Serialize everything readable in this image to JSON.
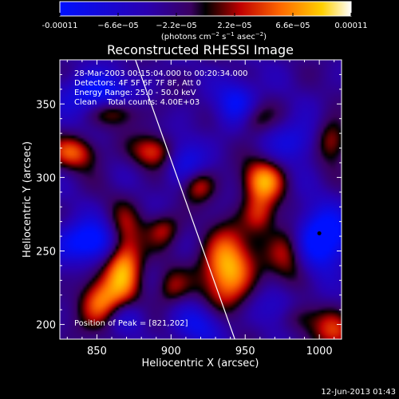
{
  "chart_data": {
    "type": "heatmap",
    "title": "Reconstructed RHESSI Image",
    "xlabel": "Heliocentric X (arcsec)",
    "ylabel": "Heliocentric Y (arcsec)",
    "xlim": [
      825,
      1015
    ],
    "ylim": [
      190,
      380
    ],
    "x_ticks": [
      850,
      900,
      950,
      1000
    ],
    "y_ticks": [
      200,
      250,
      300,
      350
    ],
    "colorbar": {
      "min": -0.00011,
      "max": 0.00011,
      "tick_values": [
        -0.00011,
        -6.6e-05,
        -2.2e-05,
        2.2e-05,
        6.6e-05,
        0.00011
      ],
      "tick_labels": [
        "-0.00011",
        "−6.6e−05",
        "−2.2e−05",
        "2.2e−05",
        "6.6e−05",
        "0.00011"
      ],
      "unit_label_parts": [
        "(photons cm",
        "−2",
        " s",
        "−1",
        " asec",
        "−2",
        ")"
      ]
    },
    "annotations": [
      "28-Mar-2003 00:15:04.000 to 00:20:34.000",
      "Detectors: 4F 5F 6F 7F 8F, Att 0",
      "Energy Range: 25.0 - 50.0 keV",
      "Clean    Total counts: 4.00E+03"
    ],
    "peak_label": "Position of Peak = [821,202]",
    "peak_marker": {
      "x": 1000,
      "y": 262
    },
    "limb_line": {
      "points": [
        [
          876,
          380
        ],
        [
          943,
          190
        ]
      ]
    },
    "sources": [
      {
        "x": 1000,
        "y": 258,
        "sx": 14,
        "sy": 14,
        "amp": -1.3
      },
      {
        "x": 846,
        "y": 256,
        "sx": 16,
        "sy": 10,
        "amp": -1.1
      },
      {
        "x": 850,
        "y": 357,
        "sx": 16,
        "sy": 10,
        "amp": -0.9
      },
      {
        "x": 945,
        "y": 350,
        "sx": 10,
        "sy": 12,
        "amp": -0.8
      },
      {
        "x": 985,
        "y": 325,
        "sx": 12,
        "sy": 10,
        "amp": -0.6
      },
      {
        "x": 910,
        "y": 310,
        "sx": 10,
        "sy": 12,
        "amp": -0.6
      },
      {
        "x": 920,
        "y": 200,
        "sx": 12,
        "sy": 10,
        "amp": -0.6
      },
      {
        "x": 975,
        "y": 210,
        "sx": 12,
        "sy": 10,
        "amp": -0.5
      },
      {
        "x": 870,
        "y": 205,
        "sx": 10,
        "sy": 8,
        "amp": -0.5
      },
      {
        "x": 868,
        "y": 245,
        "sx": 9,
        "sy": 20,
        "amp": 1.3
      },
      {
        "x": 852,
        "y": 215,
        "sx": 10,
        "sy": 12,
        "amp": 1.0
      },
      {
        "x": 938,
        "y": 238,
        "sx": 12,
        "sy": 18,
        "amp": 1.3
      },
      {
        "x": 962,
        "y": 298,
        "sx": 10,
        "sy": 10,
        "amp": 1.05
      },
      {
        "x": 980,
        "y": 250,
        "sx": 10,
        "sy": 14,
        "amp": 0.9
      },
      {
        "x": 960,
        "y": 275,
        "sx": 8,
        "sy": 10,
        "amp": 0.7
      },
      {
        "x": 888,
        "y": 318,
        "sx": 10,
        "sy": 8,
        "amp": 0.8
      },
      {
        "x": 835,
        "y": 317,
        "sx": 12,
        "sy": 8,
        "amp": 0.8
      },
      {
        "x": 918,
        "y": 295,
        "sx": 8,
        "sy": 8,
        "amp": 0.75
      },
      {
        "x": 862,
        "y": 345,
        "sx": 12,
        "sy": 7,
        "amp": 0.7
      },
      {
        "x": 1008,
        "y": 325,
        "sx": 8,
        "sy": 10,
        "amp": 0.75
      },
      {
        "x": 1010,
        "y": 195,
        "sx": 10,
        "sy": 10,
        "amp": 0.7
      },
      {
        "x": 895,
        "y": 265,
        "sx": 8,
        "sy": 8,
        "amp": 0.6
      },
      {
        "x": 985,
        "y": 205,
        "sx": 10,
        "sy": 8,
        "amp": 0.6
      },
      {
        "x": 955,
        "y": 340,
        "sx": 9,
        "sy": 8,
        "amp": 0.6
      },
      {
        "x": 900,
        "y": 225,
        "sx": 8,
        "sy": 9,
        "amp": 0.55
      }
    ],
    "background_level": -0.35
  },
  "footer": {
    "timestamp": "12-Jun-2013 01:43"
  }
}
